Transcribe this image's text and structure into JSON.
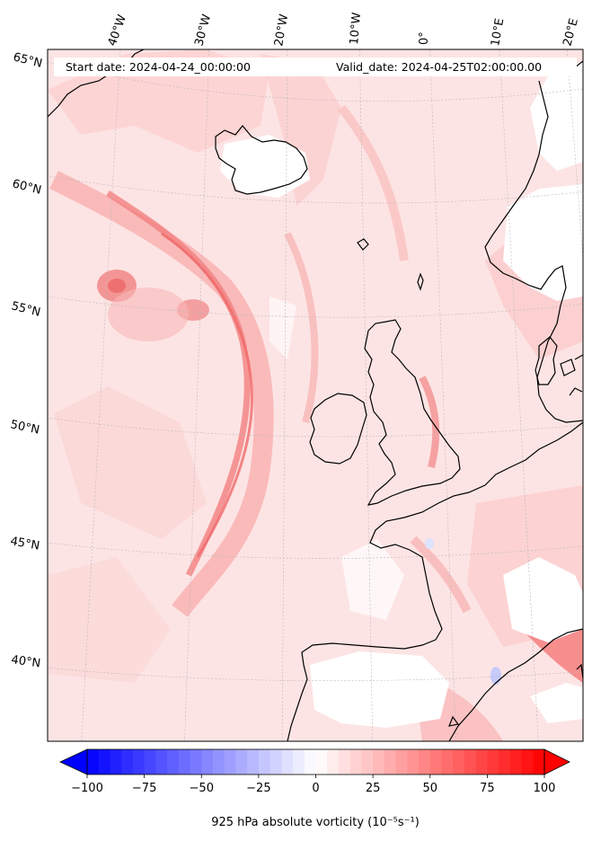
{
  "header": {
    "start_date": "Start date: 2024-04-24_00:00:00",
    "valid_date": "Valid_date: 2024-04-25T02:00:00.00"
  },
  "lon_labels": [
    "40°W",
    "30°W",
    "20°W",
    "10°W",
    "0°",
    "10°E",
    "20°E"
  ],
  "lat_labels": [
    "65°N",
    "60°N",
    "55°N",
    "50°N",
    "45°N",
    "40°N"
  ],
  "colorbar": {
    "label": "925 hPa absolute vorticity (10⁻⁵s⁻¹)",
    "ticks": [
      "−100",
      "−75",
      "−50",
      "−25",
      "0",
      "25",
      "50",
      "75",
      "100"
    ],
    "min": -100,
    "max": 100,
    "step": 5,
    "colors": {
      "negative": "#0000ff",
      "zero": "#ffffff",
      "positive": "#ff0000"
    }
  },
  "map": {
    "projection": "lambert-conformal",
    "field": "925 hPa absolute vorticity",
    "colors": {
      "ocean_background": "#fde3e3",
      "coastline": "#000000",
      "gridline": "#b0b0b0"
    }
  }
}
